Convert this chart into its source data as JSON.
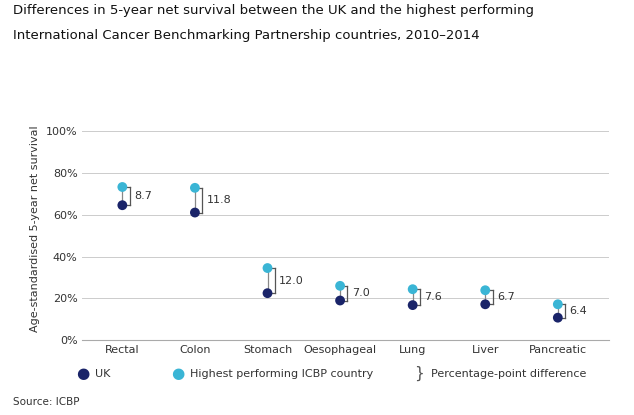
{
  "title_line1": "Differences in 5-year net survival between the UK and the highest performing",
  "title_line2": "International Cancer Benchmarking Partnership countries, 2010–2014",
  "ylabel": "Age-standardised 5-year net survival",
  "source": "Source: ICBP",
  "categories": [
    "Rectal",
    "Colon",
    "Stomach",
    "Oesophageal",
    "Lung",
    "Liver",
    "Pancreatic"
  ],
  "uk_values": [
    64.5,
    61.0,
    22.5,
    19.0,
    16.8,
    17.2,
    10.8
  ],
  "icbp_values": [
    73.2,
    72.8,
    34.5,
    26.0,
    24.4,
    23.9,
    17.2
  ],
  "differences": [
    "8.7",
    "11.8",
    "12.0",
    "7.0",
    "7.6",
    "6.7",
    "6.4"
  ],
  "uk_color": "#1a2469",
  "icbp_color": "#3ab5d5",
  "line_color": "#888888",
  "bracket_color": "#555555",
  "text_color": "#333333",
  "grid_color": "#cccccc",
  "background_color": "#ffffff",
  "title_fontsize": 9.5,
  "label_fontsize": 8,
  "tick_fontsize": 8,
  "diff_fontsize": 8,
  "source_fontsize": 7.5,
  "legend_fontsize": 8,
  "dot_size": 50,
  "ylim": [
    0,
    107
  ],
  "yticks": [
    0,
    20,
    40,
    60,
    80,
    100
  ],
  "ytick_labels": [
    "0%",
    "20%",
    "40%",
    "60%",
    "80%",
    "100%"
  ]
}
